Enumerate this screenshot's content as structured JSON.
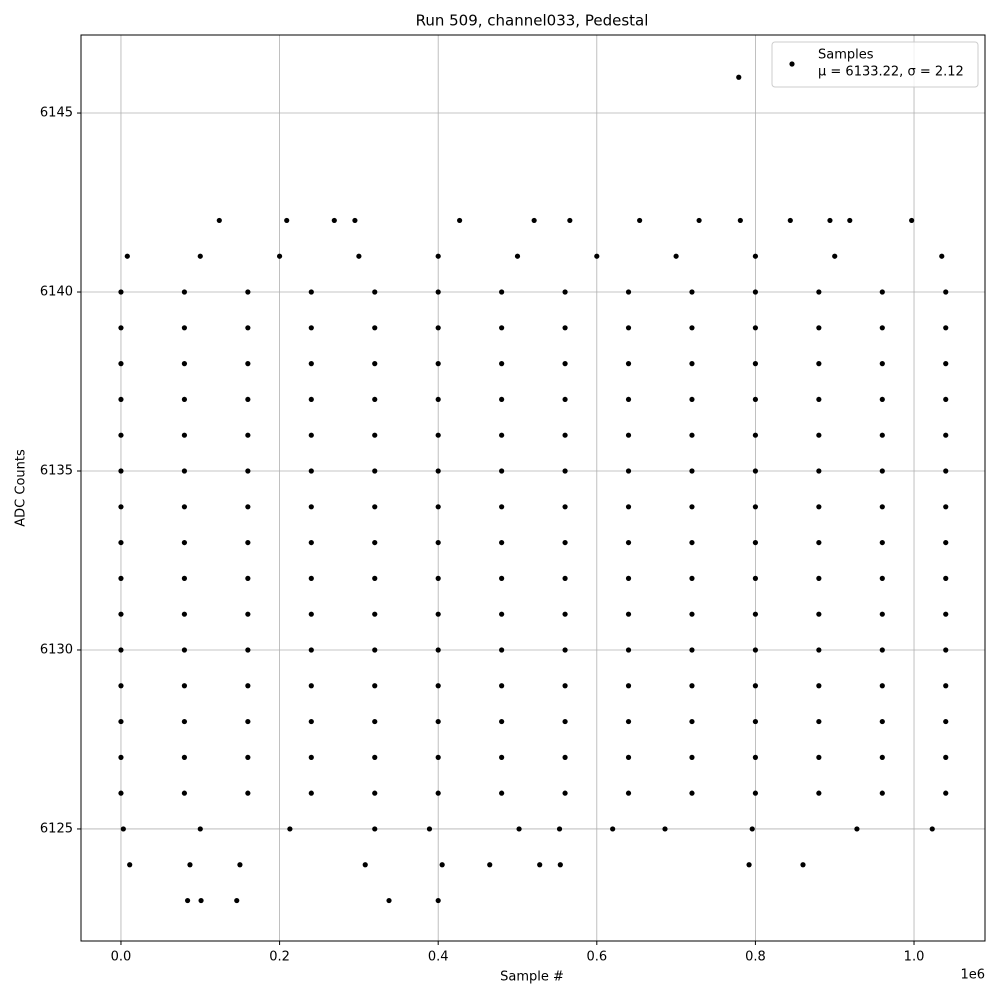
{
  "chart_data": {
    "type": "scatter",
    "title": "Run 509, channel033, Pedestal",
    "xlabel": "Sample #",
    "ylabel": "ADC Counts",
    "x_offset_label": "1e6",
    "xlim": [
      -50400,
      1089500
    ],
    "ylim": [
      6121.87,
      6147.18
    ],
    "xticks": [
      {
        "value": 0,
        "label": "0.0"
      },
      {
        "value": 200000,
        "label": "0.2"
      },
      {
        "value": 400000,
        "label": "0.4"
      },
      {
        "value": 600000,
        "label": "0.6"
      },
      {
        "value": 800000,
        "label": "0.8"
      },
      {
        "value": 1000000,
        "label": "1.0"
      }
    ],
    "yticks": [
      6125,
      6130,
      6135,
      6140,
      6145
    ],
    "grid": true,
    "legend_loc": "upper right",
    "legend_note": "μ = 6133.22, σ = 2.12",
    "series": [
      {
        "name": "Samples",
        "color": "#000000",
        "x": [
          0,
          80000,
          160000,
          240000,
          320000,
          400000,
          480000,
          560000,
          640000,
          720000,
          800000,
          880000,
          960000,
          1040000,
          0,
          80000,
          160000,
          240000,
          320000,
          400000,
          480000,
          560000,
          640000,
          720000,
          800000,
          880000,
          960000,
          1040000,
          0,
          80000,
          160000,
          240000,
          320000,
          400000,
          480000,
          560000,
          640000,
          720000,
          800000,
          880000,
          960000,
          1040000,
          0,
          80000,
          160000,
          240000,
          320000,
          400000,
          480000,
          560000,
          640000,
          720000,
          800000,
          880000,
          960000,
          1040000,
          0,
          80000,
          160000,
          240000,
          320000,
          400000,
          480000,
          560000,
          640000,
          720000,
          800000,
          880000,
          960000,
          1040000,
          0,
          80000,
          160000,
          240000,
          320000,
          400000,
          480000,
          560000,
          640000,
          720000,
          800000,
          880000,
          960000,
          1040000,
          0,
          80000,
          160000,
          240000,
          320000,
          400000,
          480000,
          560000,
          640000,
          720000,
          800000,
          880000,
          960000,
          1040000,
          0,
          80000,
          160000,
          240000,
          320000,
          400000,
          480000,
          560000,
          640000,
          720000,
          800000,
          880000,
          960000,
          1040000,
          0,
          80000,
          160000,
          240000,
          320000,
          400000,
          480000,
          560000,
          640000,
          720000,
          800000,
          880000,
          960000,
          1040000,
          0,
          80000,
          160000,
          240000,
          320000,
          400000,
          480000,
          560000,
          640000,
          720000,
          800000,
          880000,
          960000,
          1040000,
          0,
          80000,
          160000,
          240000,
          320000,
          400000,
          480000,
          560000,
          640000,
          720000,
          800000,
          880000,
          960000,
          1040000,
          0,
          80000,
          160000,
          240000,
          320000,
          400000,
          480000,
          560000,
          640000,
          720000,
          800000,
          880000,
          960000,
          1040000,
          0,
          80000,
          160000,
          240000,
          320000,
          400000,
          480000,
          560000,
          640000,
          720000,
          800000,
          880000,
          960000,
          1040000,
          0,
          80000,
          160000,
          240000,
          320000,
          400000,
          480000,
          560000,
          640000,
          720000,
          800000,
          880000,
          960000,
          1040000,
          0,
          80000,
          160000,
          240000,
          320000,
          400000,
          480000,
          560000,
          640000,
          720000,
          800000,
          880000,
          960000,
          1040000,
          779000,
          124000,
          209000,
          269000,
          295000,
          427000,
          521000,
          566000,
          654000,
          729000,
          781000,
          844000,
          894000,
          919000,
          997000,
          8000,
          100000,
          200000,
          300000,
          400000,
          500000,
          600000,
          700000,
          800000,
          900000,
          1035000,
          3000,
          100000,
          213000,
          320000,
          389000,
          502000,
          553000,
          620000,
          686000,
          796000,
          928000,
          1023000,
          11000,
          87000,
          150000,
          308000,
          405000,
          465000,
          528000,
          554000,
          792000,
          860000,
          84000,
          101000,
          146000,
          338000,
          400000
        ],
        "values": [
          6140,
          6140,
          6140,
          6140,
          6140,
          6140,
          6140,
          6140,
          6140,
          6140,
          6140,
          6140,
          6140,
          6140,
          6139,
          6139,
          6139,
          6139,
          6139,
          6139,
          6139,
          6139,
          6139,
          6139,
          6139,
          6139,
          6139,
          6139,
          6138,
          6138,
          6138,
          6138,
          6138,
          6138,
          6138,
          6138,
          6138,
          6138,
          6138,
          6138,
          6138,
          6138,
          6137,
          6137,
          6137,
          6137,
          6137,
          6137,
          6137,
          6137,
          6137,
          6137,
          6137,
          6137,
          6137,
          6137,
          6136,
          6136,
          6136,
          6136,
          6136,
          6136,
          6136,
          6136,
          6136,
          6136,
          6136,
          6136,
          6136,
          6136,
          6135,
          6135,
          6135,
          6135,
          6135,
          6135,
          6135,
          6135,
          6135,
          6135,
          6135,
          6135,
          6135,
          6135,
          6134,
          6134,
          6134,
          6134,
          6134,
          6134,
          6134,
          6134,
          6134,
          6134,
          6134,
          6134,
          6134,
          6134,
          6133,
          6133,
          6133,
          6133,
          6133,
          6133,
          6133,
          6133,
          6133,
          6133,
          6133,
          6133,
          6133,
          6133,
          6132,
          6132,
          6132,
          6132,
          6132,
          6132,
          6132,
          6132,
          6132,
          6132,
          6132,
          6132,
          6132,
          6132,
          6131,
          6131,
          6131,
          6131,
          6131,
          6131,
          6131,
          6131,
          6131,
          6131,
          6131,
          6131,
          6131,
          6131,
          6130,
          6130,
          6130,
          6130,
          6130,
          6130,
          6130,
          6130,
          6130,
          6130,
          6130,
          6130,
          6130,
          6130,
          6129,
          6129,
          6129,
          6129,
          6129,
          6129,
          6129,
          6129,
          6129,
          6129,
          6129,
          6129,
          6129,
          6129,
          6128,
          6128,
          6128,
          6128,
          6128,
          6128,
          6128,
          6128,
          6128,
          6128,
          6128,
          6128,
          6128,
          6128,
          6127,
          6127,
          6127,
          6127,
          6127,
          6127,
          6127,
          6127,
          6127,
          6127,
          6127,
          6127,
          6127,
          6127,
          6126,
          6126,
          6126,
          6126,
          6126,
          6126,
          6126,
          6126,
          6126,
          6126,
          6126,
          6126,
          6126,
          6126,
          6146,
          6142,
          6142,
          6142,
          6142,
          6142,
          6142,
          6142,
          6142,
          6142,
          6142,
          6142,
          6142,
          6142,
          6142,
          6141,
          6141,
          6141,
          6141,
          6141,
          6141,
          6141,
          6141,
          6141,
          6141,
          6141,
          6125,
          6125,
          6125,
          6125,
          6125,
          6125,
          6125,
          6125,
          6125,
          6125,
          6125,
          6125,
          6124,
          6124,
          6124,
          6124,
          6124,
          6124,
          6124,
          6124,
          6124,
          6124,
          6123,
          6123,
          6123,
          6123,
          6123
        ]
      }
    ]
  }
}
